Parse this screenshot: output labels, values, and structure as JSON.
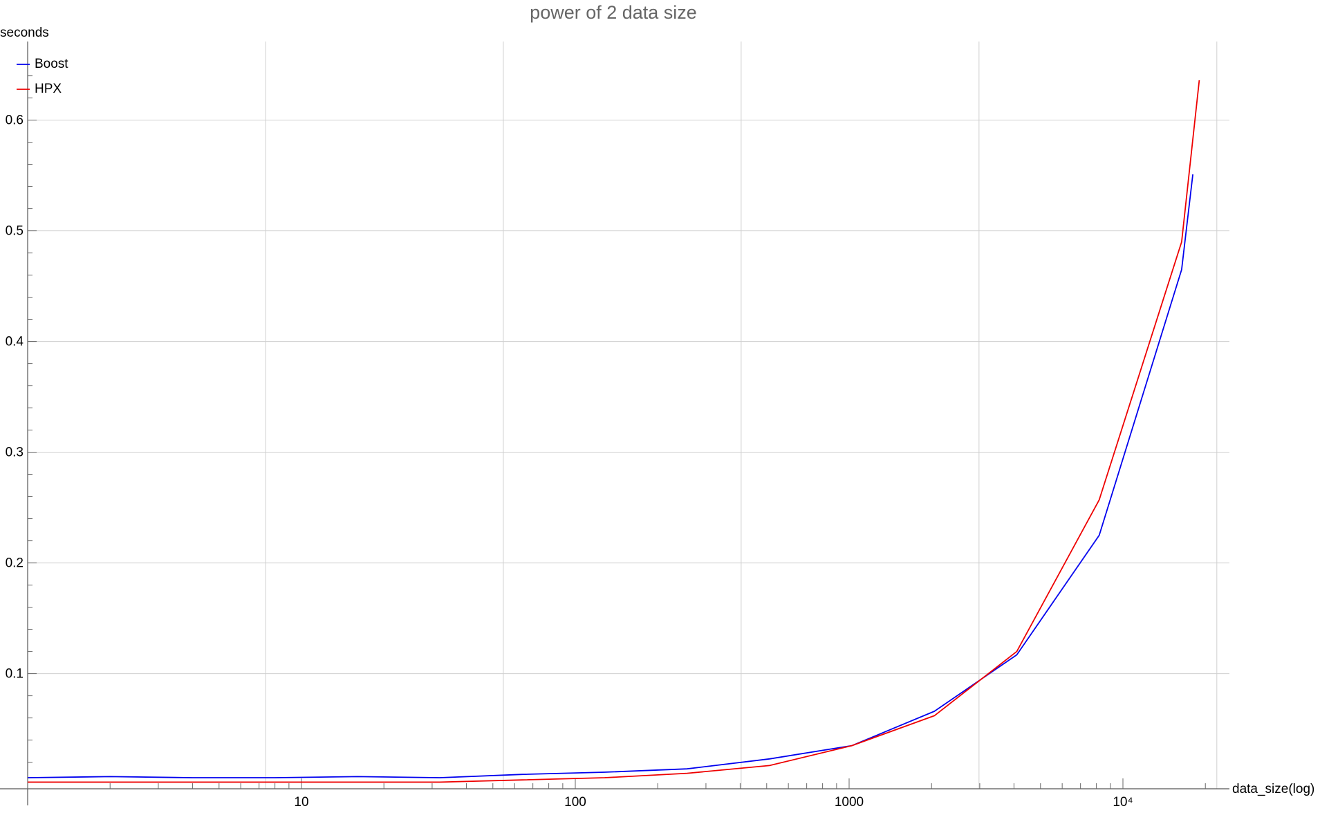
{
  "chart_data": {
    "type": "line",
    "title": "power of 2 data size",
    "xlabel": "data_size(log)",
    "ylabel": "seconds",
    "x_scale": "log",
    "xlim": [
      1,
      24000
    ],
    "ylim": [
      -0.004,
      0.67
    ],
    "x_ticks": [
      {
        "value": 10,
        "label": "10"
      },
      {
        "value": 100,
        "label": "100"
      },
      {
        "value": 1000,
        "label": "1000"
      },
      {
        "value": 10000,
        "label": "10⁴"
      }
    ],
    "y_ticks": [
      {
        "value": 0.1,
        "label": "0.1"
      },
      {
        "value": 0.2,
        "label": "0.2"
      },
      {
        "value": 0.3,
        "label": "0.3"
      },
      {
        "value": 0.4,
        "label": "0.4"
      },
      {
        "value": 0.5,
        "label": "0.5"
      },
      {
        "value": 0.6,
        "label": "0.6"
      }
    ],
    "grid_x": [
      7.4,
      54.6,
      403.4,
      2981,
      22026
    ],
    "grid_y": [
      0.1,
      0.2,
      0.3,
      0.4,
      0.5,
      0.6
    ],
    "grid": true,
    "legend_position": "top-left",
    "series": [
      {
        "name": "Boost",
        "color": "#0000ee",
        "x": [
          1,
          2,
          4,
          8,
          16,
          32,
          64,
          128,
          256,
          512,
          1024,
          2048,
          4096,
          8192,
          16384,
          18000
        ],
        "y": [
          0.006,
          0.007,
          0.006,
          0.006,
          0.007,
          0.006,
          0.009,
          0.011,
          0.014,
          0.023,
          0.035,
          0.066,
          0.117,
          0.225,
          0.465,
          0.551
        ]
      },
      {
        "name": "HPX",
        "color": "#ee0000",
        "x": [
          1,
          2,
          4,
          8,
          16,
          32,
          64,
          128,
          256,
          512,
          1024,
          2048,
          4096,
          8192,
          16384,
          19000
        ],
        "y": [
          0.002,
          0.002,
          0.002,
          0.002,
          0.002,
          0.002,
          0.004,
          0.006,
          0.01,
          0.017,
          0.035,
          0.062,
          0.12,
          0.257,
          0.49,
          0.636
        ]
      }
    ]
  }
}
